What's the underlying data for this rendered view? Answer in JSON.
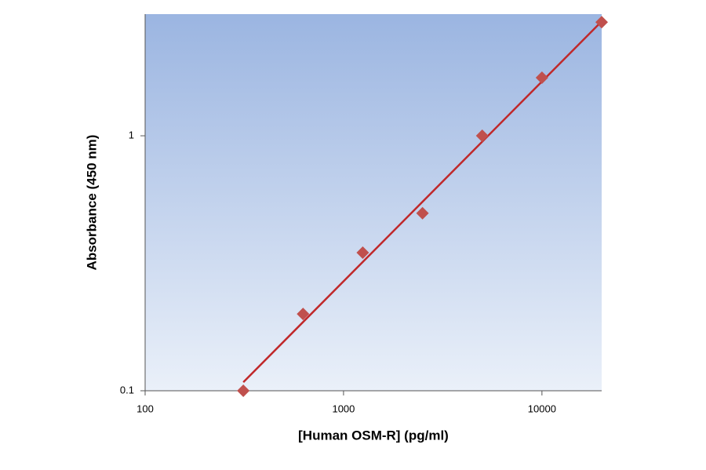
{
  "chart_data": {
    "type": "scatter",
    "x_label": "[Human OSM-R] (pg/ml)",
    "y_label": "Absorbance (450 nm)",
    "x_scale": "log",
    "y_scale": "log",
    "series": [
      {
        "color": "#c0504d",
        "x": [
          312.5,
          625,
          1250,
          2500,
          5000,
          10000,
          20000
        ],
        "values": [
          0.1,
          0.2,
          0.348,
          0.497,
          1.0,
          1.69,
          2.79
        ]
      }
    ],
    "fit_line": {
      "color": "#c0282a",
      "x": [
        312.5,
        20000
      ],
      "values": [
        0.108,
        2.81
      ]
    },
    "xlim": [
      100,
      20000
    ],
    "ylim": [
      0.1,
      3
    ],
    "xticks": [
      100,
      1000,
      10000
    ],
    "yticks": [
      0.1,
      1
    ]
  }
}
